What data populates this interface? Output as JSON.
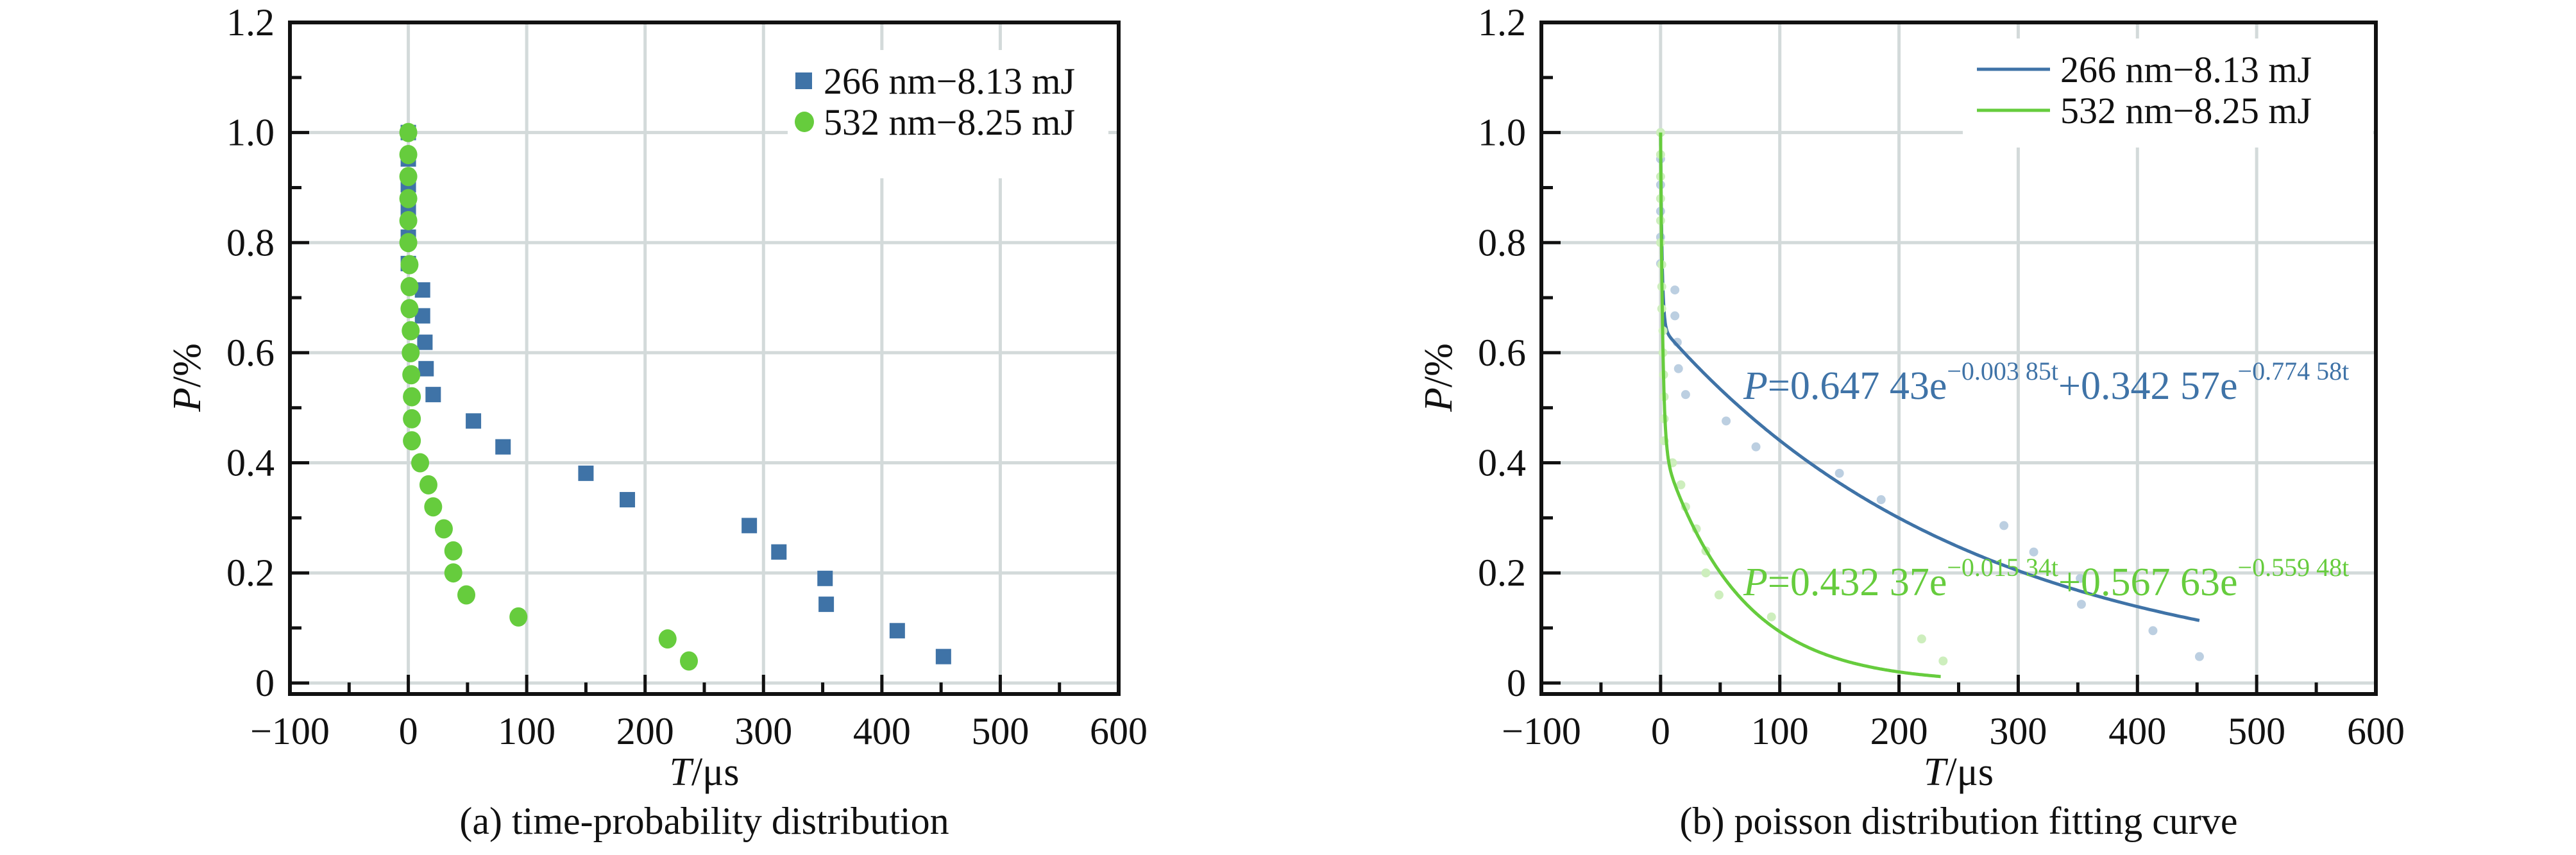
{
  "colors": {
    "blue": "#3f73a7",
    "green": "#66cc3d",
    "grid": "#d3dada",
    "blue_faded": "#bccfe1",
    "green_faded": "#cdeebd"
  },
  "chart_data": [
    {
      "type": "scatter",
      "caption": "(a) time-probability distribution",
      "xlabel_italic": "T",
      "xlabel_unit": "/μs",
      "ylabel_italic": "P",
      "ylabel_unit": "/%",
      "xlim": [
        -100,
        600
      ],
      "ylim": [
        -0.02,
        1.2
      ],
      "xticks": [
        -100,
        0,
        100,
        200,
        300,
        400,
        500,
        600
      ],
      "xtick_labels": [
        "−100",
        "0",
        "100",
        "200",
        "300",
        "400",
        "500",
        "600"
      ],
      "yticks": [
        0,
        0.2,
        0.4,
        0.6,
        0.8,
        1.0,
        1.2
      ],
      "ytick_labels": [
        "0",
        "0.2",
        "0.4",
        "0.6",
        "0.8",
        "1.0",
        "1.2"
      ],
      "grid": true,
      "legend_position": "top-right",
      "series": [
        {
          "name": "266 nm−8.13 mJ",
          "marker": "square",
          "color": "blue",
          "x": [
            0,
            0,
            0,
            0,
            0,
            0,
            12,
            12,
            14,
            15,
            21,
            55,
            80,
            150,
            185,
            288,
            313,
            352,
            353,
            413,
            452
          ],
          "y": [
            1.0,
            0.952,
            0.905,
            0.857,
            0.81,
            0.762,
            0.714,
            0.667,
            0.619,
            0.571,
            0.524,
            0.476,
            0.429,
            0.381,
            0.333,
            0.286,
            0.238,
            0.19,
            0.143,
            0.095,
            0.048
          ]
        },
        {
          "name": "532 nm−8.25 mJ",
          "marker": "circle",
          "color": "green",
          "x": [
            0,
            0,
            0,
            0,
            0,
            0,
            1,
            1,
            1,
            2,
            2,
            2.5,
            3,
            3,
            3,
            10,
            17,
            21,
            30,
            38,
            38,
            49,
            93,
            219,
            237
          ],
          "y": [
            1.0,
            0.96,
            0.92,
            0.88,
            0.84,
            0.8,
            0.76,
            0.72,
            0.68,
            0.64,
            0.6,
            0.56,
            0.52,
            0.48,
            0.44,
            0.4,
            0.36,
            0.32,
            0.28,
            0.24,
            0.2,
            0.16,
            0.12,
            0.08,
            0.04
          ]
        }
      ]
    },
    {
      "type": "line",
      "caption": "(b) poisson distribution fitting curve",
      "xlabel_italic": "T",
      "xlabel_unit": "/μs",
      "ylabel_italic": "P",
      "ylabel_unit": "/%",
      "xlim": [
        -100,
        600
      ],
      "ylim": [
        -0.02,
        1.2
      ],
      "xticks": [
        -100,
        0,
        100,
        200,
        300,
        400,
        500,
        600
      ],
      "xtick_labels": [
        "−100",
        "0",
        "100",
        "200",
        "300",
        "400",
        "500",
        "600"
      ],
      "yticks": [
        0,
        0.2,
        0.4,
        0.6,
        0.8,
        1.0,
        1.2
      ],
      "ytick_labels": [
        "0",
        "0.2",
        "0.4",
        "0.6",
        "0.8",
        "1.0",
        "1.2"
      ],
      "grid": true,
      "legend_position": "top-right",
      "series": [
        {
          "name": "266 nm−8.13 mJ",
          "color": "blue",
          "faded_color": "blue_faded",
          "fit": {
            "a1": 0.64743,
            "b1": 0.00385,
            "a2": 0.34257,
            "b2": 0.77458,
            "t_range": [
              0,
              452
            ]
          },
          "equation": [
            "P",
            "=0.647 43e",
            "−0.003 85t",
            "+0.342 57e",
            "−0.774 58t"
          ],
          "x": [
            0,
            0,
            0,
            0,
            0,
            0,
            12,
            12,
            14,
            15,
            21,
            55,
            80,
            150,
            185,
            288,
            313,
            352,
            353,
            413,
            452
          ],
          "y": [
            1.0,
            0.952,
            0.905,
            0.857,
            0.81,
            0.762,
            0.714,
            0.667,
            0.619,
            0.571,
            0.524,
            0.476,
            0.429,
            0.381,
            0.333,
            0.286,
            0.238,
            0.19,
            0.143,
            0.095,
            0.048
          ]
        },
        {
          "name": "532 nm−8.25 mJ",
          "color": "green",
          "faded_color": "green_faded",
          "fit": {
            "a1": 0.43237,
            "b1": 0.01534,
            "a2": 0.56763,
            "b2": 0.55948,
            "t_range": [
              0,
              235
            ]
          },
          "equation": [
            "P",
            "=0.432 37e",
            "−0.015 34t",
            "+0.567 63e",
            "−0.559 48t"
          ],
          "x": [
            0,
            0,
            0,
            0,
            0,
            0,
            1,
            1,
            1,
            2,
            2,
            2.5,
            3,
            3,
            3,
            10,
            17,
            21,
            30,
            38,
            38,
            49,
            93,
            219,
            237
          ],
          "y": [
            1.0,
            0.96,
            0.92,
            0.88,
            0.84,
            0.8,
            0.76,
            0.72,
            0.68,
            0.64,
            0.6,
            0.56,
            0.52,
            0.48,
            0.44,
            0.4,
            0.36,
            0.32,
            0.28,
            0.24,
            0.2,
            0.16,
            0.12,
            0.08,
            0.04
          ]
        }
      ]
    }
  ]
}
